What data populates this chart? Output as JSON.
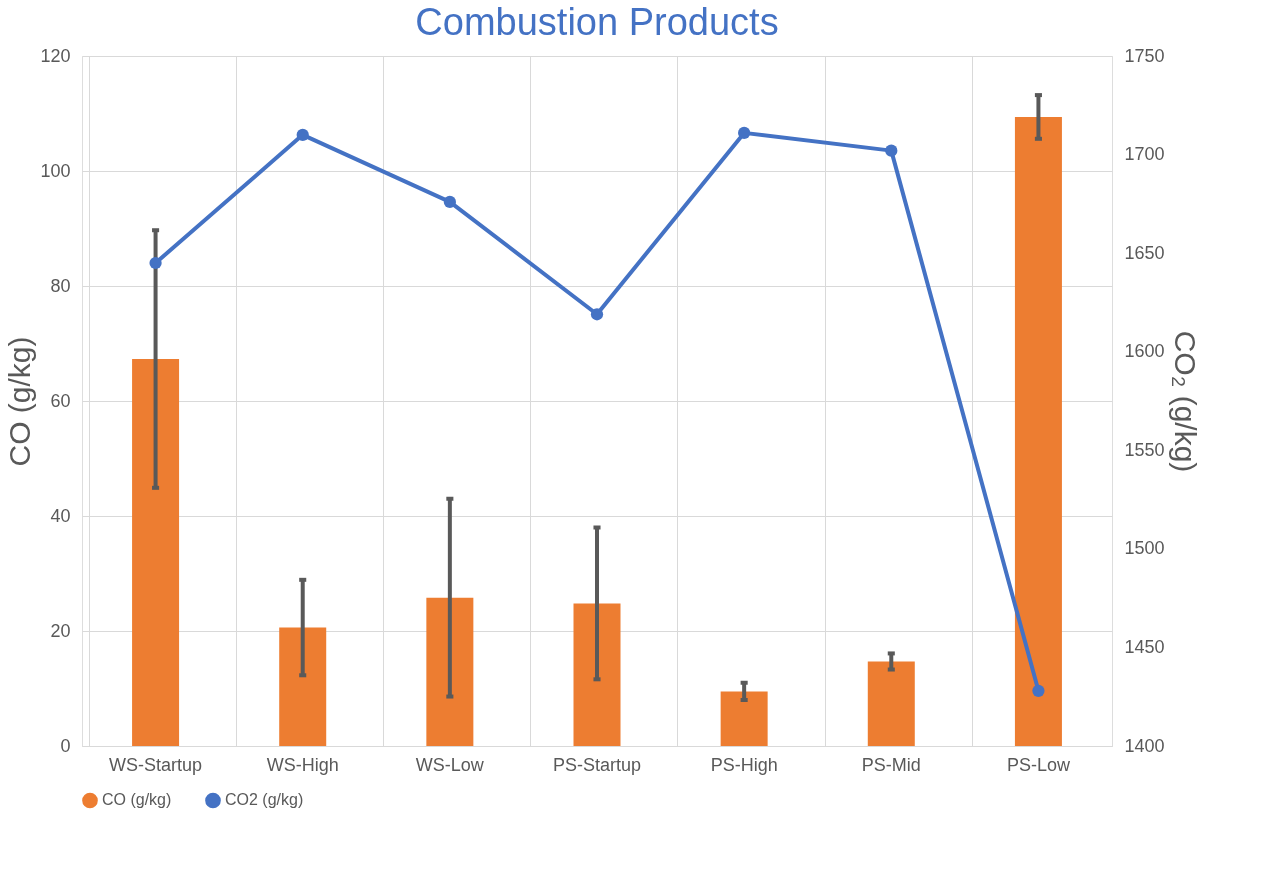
{
  "chart_data": {
    "type": "bar",
    "title": "Combustion Products",
    "categories": [
      "WS-Startup",
      "WS-High",
      "WS-Low",
      "PS-Startup",
      "PS-High",
      "PS-Mid",
      "PS-Low"
    ],
    "series": [
      {
        "name": "CO (g/kg)",
        "color": "#ed7d31",
        "values": [
          67.3,
          20.6,
          25.8,
          24.8,
          9.5,
          14.7,
          109.4
        ],
        "errors": [
          22.4,
          8.3,
          17.2,
          13.2,
          1.5,
          1.4,
          3.8
        ]
      },
      {
        "name": "CO2 (g/kg)",
        "type": "line",
        "axis": "y2",
        "color": "#4472c4",
        "marker": "circle",
        "values": [
          1645,
          1710,
          1676,
          1619,
          1711,
          1702,
          1428
        ]
      }
    ],
    "ylabel": "CO (g/kg)",
    "y2label": "CO₂ (g/kg)",
    "ylim": [
      0,
      120
    ],
    "yticks": [
      0,
      20,
      40,
      60,
      80,
      100,
      120
    ],
    "y2lim": [
      1400,
      1750
    ],
    "y2ticks": [
      1400,
      1450,
      1500,
      1550,
      1600,
      1650,
      1700,
      1750
    ],
    "grid": true,
    "legend": "bottom"
  }
}
